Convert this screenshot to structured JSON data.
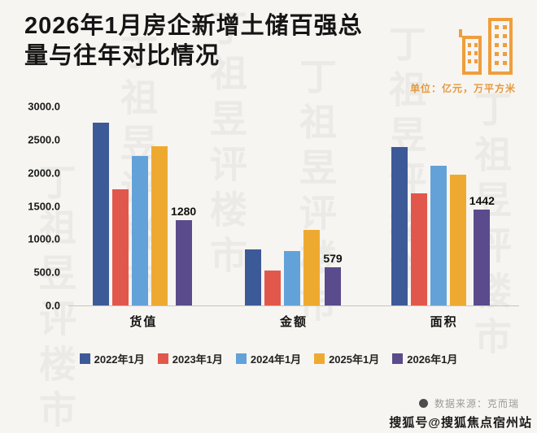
{
  "page": {
    "title_line1": "2026年1月房企新增土储百强总",
    "title_line2": "量与往年对比情况",
    "unit_note": "单位：亿元，万平方米",
    "source": "数据来源：克而瑞",
    "watermark_bottom": "搜狐号@搜狐焦点宿州站",
    "watermark_repeat": "丁祖昱评楼市",
    "icon": "building-icon",
    "accent_color": "#e49a3e"
  },
  "chart_data": {
    "type": "bar",
    "categories": [
      "货值",
      "金额",
      "面积"
    ],
    "series": [
      {
        "name": "2022年1月",
        "color": "#3d5a98",
        "labeled": false,
        "values": [
          2760,
          850,
          2390
        ]
      },
      {
        "name": "2023年1月",
        "color": "#e2574c",
        "labeled": false,
        "values": [
          1750,
          525,
          1690
        ]
      },
      {
        "name": "2024年1月",
        "color": "#63a2d8",
        "labeled": false,
        "values": [
          2250,
          825,
          2110
        ]
      },
      {
        "name": "2025年1月",
        "color": "#eeaa30",
        "labeled": false,
        "values": [
          2400,
          1140,
          1970
        ]
      },
      {
        "name": "2026年1月",
        "color": "#5a4b8c",
        "labeled": true,
        "values": [
          1280,
          579,
          1442
        ]
      }
    ],
    "title": "2026年1月房企新增土储百强总量与往年对比情况",
    "xlabel": "",
    "ylabel": "",
    "unit": "亿元，万平方米",
    "ylim": [
      0,
      3000
    ],
    "ytick_labels": [
      "3000.0",
      "2500.0",
      "2000.0",
      "1500.0",
      "1000.0",
      "500.0",
      "0.0"
    ],
    "grid": false,
    "legend_position": "bottom"
  }
}
